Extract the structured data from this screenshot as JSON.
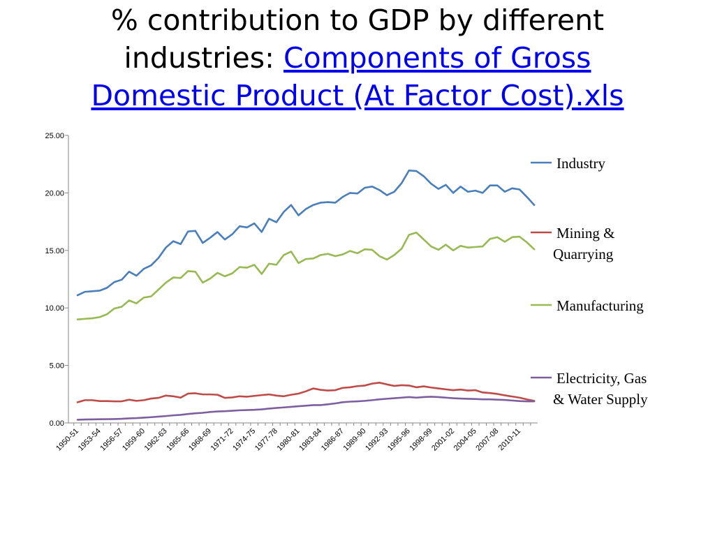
{
  "title": {
    "prefix_line1": "% contribution to GDP by different",
    "prefix_line2": "industries:",
    "link_line2": "Components of Gross",
    "link_line3": "Domestic Product (At Factor Cost).xls"
  },
  "chart_data": {
    "type": "line",
    "ylim": [
      0,
      25
    ],
    "yticks": [
      "0.00",
      "5.00",
      "10.00",
      "15.00",
      "20.00",
      "25.00"
    ],
    "x": [
      "1950-51",
      "1951-52",
      "1952-53",
      "1953-54",
      "1954-55",
      "1955-56",
      "1956-57",
      "1957-58",
      "1958-59",
      "1959-60",
      "1960-61",
      "1961-62",
      "1962-63",
      "1963-64",
      "1964-65",
      "1965-66",
      "1966-67",
      "1967-68",
      "1968-69",
      "1969-70",
      "1970-71",
      "1971-72",
      "1972-73",
      "1973-74",
      "1974-75",
      "1975-76",
      "1976-77",
      "1977-78",
      "1978-79",
      "1979-80",
      "1980-81",
      "1981-82",
      "1982-83",
      "1983-84",
      "1984-85",
      "1985-86",
      "1986-87",
      "1987-88",
      "1988-89",
      "1989-90",
      "1990-91",
      "1991-92",
      "1992-93",
      "1993-94",
      "1994-95",
      "1995-96",
      "1996-97",
      "1997-98",
      "1998-99",
      "1999-00",
      "2000-01",
      "2001-02",
      "2002-03",
      "2003-04",
      "2004-05",
      "2005-06",
      "2006-07",
      "2007-08",
      "2008-09",
      "2009-10",
      "2010-11",
      "2011-12",
      "2012-13"
    ],
    "x_tick_labels": [
      "1950-51",
      "1953-54",
      "1956-57",
      "1959-60",
      "1962-63",
      "1965-66",
      "1968-69",
      "1971-72",
      "1974-75",
      "1977-78",
      "1980-81",
      "1983-84",
      "1986-87",
      "1989-90",
      "1992-93",
      "1995-96",
      "1998-99",
      "2001-02",
      "2004-05",
      "2007-08",
      "2010-11"
    ],
    "x_tick_step": 3,
    "legend_position": "right",
    "grid": false,
    "series": [
      {
        "name": "Industry",
        "legend_lines": [
          "Industry"
        ],
        "color": "#4a7ebb",
        "values": [
          11.1,
          11.4,
          11.45,
          11.5,
          11.75,
          12.25,
          12.45,
          13.15,
          12.8,
          13.4,
          13.7,
          14.35,
          15.25,
          15.8,
          15.55,
          16.65,
          16.7,
          15.65,
          16.1,
          16.6,
          15.95,
          16.4,
          17.1,
          17.0,
          17.35,
          16.6,
          17.75,
          17.45,
          18.35,
          18.95,
          18.05,
          18.6,
          18.95,
          19.15,
          19.2,
          19.15,
          19.65,
          20.0,
          19.95,
          20.45,
          20.55,
          20.25,
          19.8,
          20.1,
          20.85,
          21.95,
          21.9,
          21.45,
          20.8,
          20.35,
          20.7,
          20.0,
          20.55,
          20.1,
          20.2,
          20.0,
          20.65,
          20.65,
          20.1,
          20.4,
          20.3,
          19.65,
          18.95
        ]
      },
      {
        "name": "Mining & Quarrying",
        "legend_lines": [
          "Mining &",
          "Quarrying"
        ],
        "color": "#be4b48",
        "values": [
          1.8,
          1.98,
          1.98,
          1.9,
          1.9,
          1.88,
          1.88,
          2.02,
          1.92,
          1.98,
          2.12,
          2.18,
          2.38,
          2.32,
          2.2,
          2.55,
          2.58,
          2.48,
          2.48,
          2.45,
          2.18,
          2.22,
          2.32,
          2.28,
          2.35,
          2.42,
          2.48,
          2.38,
          2.32,
          2.45,
          2.55,
          2.75,
          3.0,
          2.88,
          2.82,
          2.85,
          3.05,
          3.1,
          3.2,
          3.25,
          3.42,
          3.5,
          3.35,
          3.22,
          3.28,
          3.25,
          3.1,
          3.18,
          3.08,
          3.0,
          2.92,
          2.85,
          2.9,
          2.82,
          2.85,
          2.65,
          2.6,
          2.52,
          2.4,
          2.3,
          2.2,
          2.05,
          1.92
        ]
      },
      {
        "name": "Manufacturing",
        "legend_lines": [
          "Manufacturing"
        ],
        "color": "#98b954",
        "values": [
          9.0,
          9.05,
          9.1,
          9.2,
          9.45,
          9.95,
          10.1,
          10.65,
          10.4,
          10.9,
          11.0,
          11.6,
          12.2,
          12.65,
          12.6,
          13.2,
          13.15,
          12.2,
          12.55,
          13.05,
          12.75,
          13.0,
          13.55,
          13.5,
          13.75,
          12.95,
          13.85,
          13.75,
          14.6,
          14.9,
          13.9,
          14.25,
          14.3,
          14.6,
          14.7,
          14.5,
          14.65,
          14.95,
          14.75,
          15.1,
          15.05,
          14.5,
          14.2,
          14.6,
          15.15,
          16.35,
          16.55,
          15.95,
          15.35,
          15.05,
          15.5,
          15.0,
          15.4,
          15.25,
          15.3,
          15.35,
          16.0,
          16.15,
          15.75,
          16.15,
          16.2,
          15.7,
          15.1
        ]
      },
      {
        "name": "Electricity, Gas & Water Supply",
        "legend_lines": [
          "Electricity, Gas",
          "& Water Supply"
        ],
        "color": "#7d5fa0",
        "values": [
          0.28,
          0.3,
          0.31,
          0.32,
          0.33,
          0.34,
          0.36,
          0.4,
          0.42,
          0.46,
          0.5,
          0.55,
          0.6,
          0.66,
          0.7,
          0.78,
          0.84,
          0.88,
          0.95,
          1.0,
          1.02,
          1.06,
          1.1,
          1.12,
          1.14,
          1.18,
          1.25,
          1.3,
          1.35,
          1.4,
          1.45,
          1.5,
          1.55,
          1.55,
          1.62,
          1.7,
          1.8,
          1.85,
          1.88,
          1.92,
          1.98,
          2.05,
          2.1,
          2.15,
          2.2,
          2.25,
          2.2,
          2.25,
          2.28,
          2.25,
          2.2,
          2.15,
          2.12,
          2.1,
          2.08,
          2.05,
          2.05,
          2.02,
          2.0,
          1.95,
          1.9,
          1.88,
          1.88
        ]
      }
    ]
  }
}
